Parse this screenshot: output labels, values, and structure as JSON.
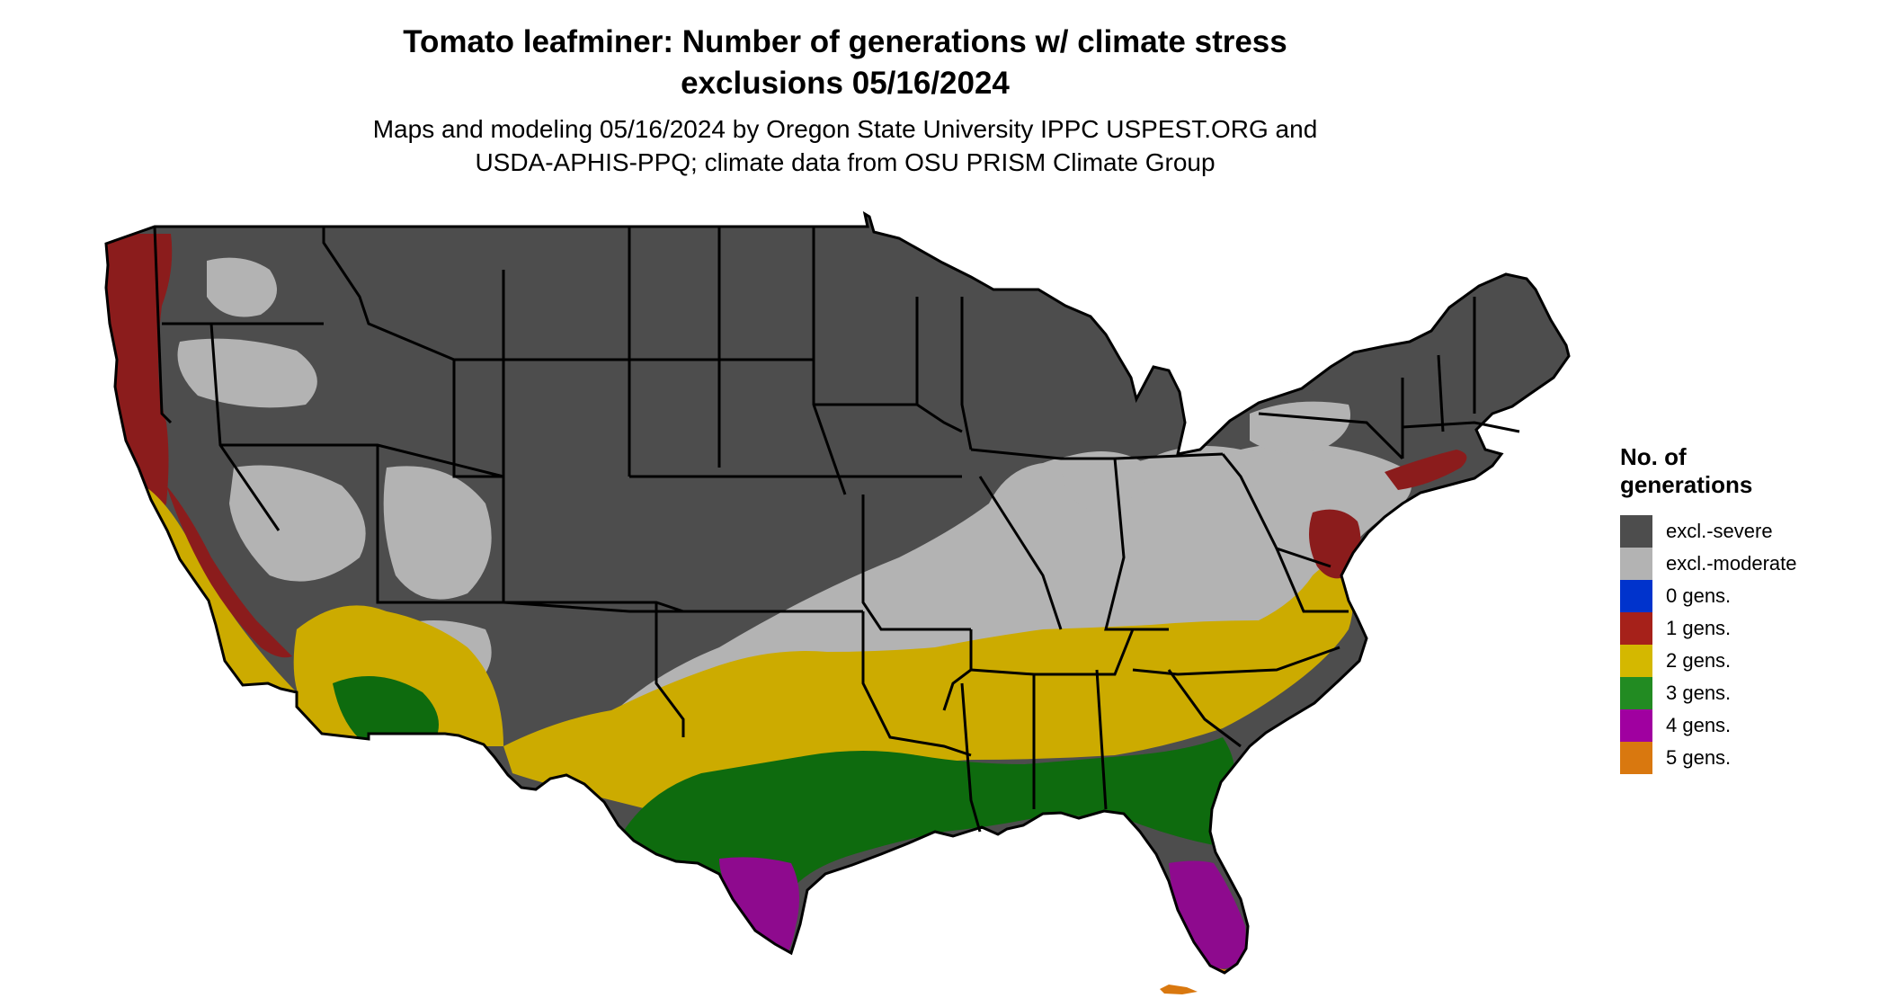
{
  "title_line1": "Tomato leafminer: Number of generations w/ climate stress",
  "title_line2": "exclusions 05/16/2024",
  "subtitle_line1": "Maps and modeling 05/16/2024 by Oregon State University IPPC USPEST.ORG and",
  "subtitle_line2": "USDA-APHIS-PPQ; climate data from OSU PRISM Climate Group",
  "legend": {
    "title_line1": "No. of",
    "title_line2": "generations",
    "items": [
      {
        "label": "excl.-severe",
        "color": "#4d4d4d"
      },
      {
        "label": "excl.-moderate",
        "color": "#b3b3b3"
      },
      {
        "label": "0 gens.",
        "color": "#0033cc"
      },
      {
        "label": "1 gens.",
        "color": "#a6211a"
      },
      {
        "label": "2 gens.",
        "color": "#d4b800"
      },
      {
        "label": "3 gens.",
        "color": "#228b22"
      },
      {
        "label": "4 gens.",
        "color": "#a000a0"
      },
      {
        "label": "5 gens.",
        "color": "#d9780f"
      }
    ]
  },
  "map_colors": {
    "excl_severe": "#4d4d4d",
    "excl_moderate": "#b3b3b3",
    "gens_1": "#8b1c1c",
    "gens_2": "#ccab00",
    "gens_3": "#0e6b0e",
    "gens_3_light": "#2e8b2e",
    "gens_4": "#8e0a8e",
    "gens_5": "#d9780f",
    "boundary": "#000000"
  }
}
